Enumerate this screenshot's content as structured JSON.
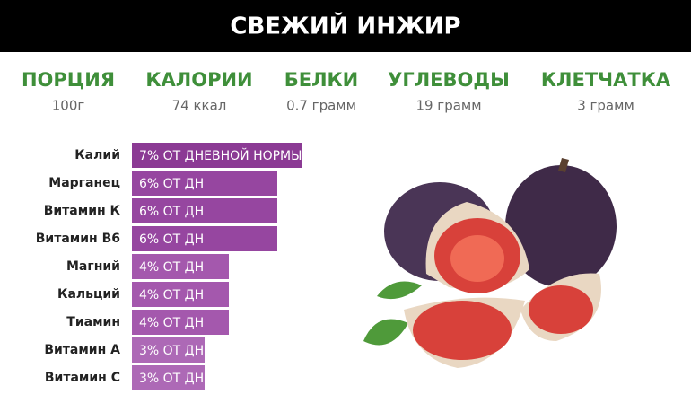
{
  "header": {
    "title": "СВЕЖИЙ ИНЖИР"
  },
  "nutrition": [
    {
      "label": "ПОРЦИЯ",
      "value": "100г"
    },
    {
      "label": "КАЛОРИИ",
      "value": "74 ккал"
    },
    {
      "label": "БЕЛКИ",
      "value": "0.7 грамм"
    },
    {
      "label": "УГЛЕВОДЫ",
      "value": "19 грамм"
    },
    {
      "label": "КЛЕТЧАТКА",
      "value": "3 грамм"
    }
  ],
  "chart_data": {
    "type": "bar",
    "orientation": "horizontal",
    "categories": [
      "Калий",
      "Марганец",
      "Витамин К",
      "Витамин В6",
      "Магний",
      "Кальций",
      "Тиамин",
      "Витамин А",
      "Витамин С"
    ],
    "values": [
      7,
      6,
      6,
      6,
      4,
      4,
      4,
      3,
      3
    ],
    "value_labels": [
      "7% ОТ ДНЕВНОЙ НОРМЫ",
      "6% ОТ ДН",
      "6% ОТ ДН",
      "6% ОТ ДН",
      "4% ОТ ДН",
      "4% ОТ ДН",
      "4% ОТ ДН",
      "3% ОТ ДН",
      "3% ОТ ДН"
    ],
    "colors": [
      "#8b3a94",
      "#9646a0",
      "#9646a0",
      "#9646a0",
      "#a458ad",
      "#a458ad",
      "#a458ad",
      "#ad69b6",
      "#ad69b6"
    ]
  }
}
